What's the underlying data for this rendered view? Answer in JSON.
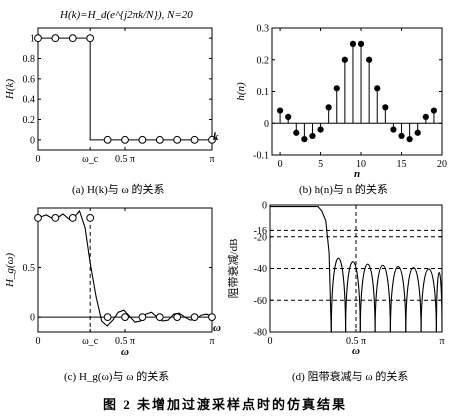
{
  "figure_caption": "图 2 未增加过渡采样点时的仿真结果",
  "chart_data": [
    {
      "id": "a",
      "type": "scatter",
      "title": "H(k)=H_d(e^{j2πk/N}), N=20",
      "caption": "(a) H(k)与 ω 的关系",
      "ylabel": "H(k)",
      "xlabel": "",
      "x_end_label": "k",
      "xlim": [
        0,
        3.1416
      ],
      "ylim": [
        -0.1,
        1.1
      ],
      "xticks": [
        {
          "v": 0,
          "label": "0"
        },
        {
          "v": 0.942,
          "label": "ω_c"
        },
        {
          "v": 1.5708,
          "label": "0.5 π"
        },
        {
          "v": 3.1416,
          "label": "π"
        }
      ],
      "yticks": [
        {
          "v": 0,
          "label": "0"
        },
        {
          "v": 0.2,
          "label": "0.2"
        },
        {
          "v": 0.4,
          "label": "0.4"
        },
        {
          "v": 0.6,
          "label": "0.6"
        },
        {
          "v": 0.8,
          "label": "0.8"
        },
        {
          "v": 1,
          "label": "1"
        }
      ],
      "points": {
        "x": [
          0,
          0.314,
          0.628,
          0.942,
          1.257,
          1.571,
          1.885,
          2.199,
          2.513,
          2.827,
          3.1416
        ],
        "y": [
          1,
          1,
          1,
          1,
          0,
          0,
          0,
          0,
          0,
          0,
          0
        ]
      },
      "ideal": {
        "x": [
          0,
          0.942,
          0.942,
          3.1416
        ],
        "y": [
          1,
          1,
          0,
          0
        ]
      }
    },
    {
      "id": "b",
      "type": "scatter",
      "caption": "(b) h(n)与 n 的关系",
      "ylabel": "h(n)",
      "xlabel": "n",
      "xlim": [
        -1,
        20
      ],
      "ylim": [
        -0.1,
        0.3
      ],
      "xticks": [
        {
          "v": 0,
          "label": "0"
        },
        {
          "v": 5,
          "label": "5"
        },
        {
          "v": 10,
          "label": "10"
        },
        {
          "v": 15,
          "label": "15"
        },
        {
          "v": 20,
          "label": "20"
        }
      ],
      "yticks": [
        {
          "v": -0.1,
          "label": "-0.1"
        },
        {
          "v": 0,
          "label": "0"
        },
        {
          "v": 0.1,
          "label": "0.1"
        },
        {
          "v": 0.2,
          "label": "0.2"
        },
        {
          "v": 0.3,
          "label": "0.3"
        }
      ],
      "stems": {
        "x": [
          0,
          1,
          2,
          3,
          4,
          5,
          6,
          7,
          8,
          9,
          10,
          11,
          12,
          13,
          14,
          15,
          16,
          17,
          18,
          19
        ],
        "y": [
          0.04,
          0.02,
          -0.03,
          -0.05,
          -0.04,
          -0.02,
          0.05,
          0.11,
          0.2,
          0.25,
          0.25,
          0.2,
          0.11,
          0.05,
          -0.02,
          -0.04,
          -0.05,
          -0.03,
          0.02,
          0.04
        ]
      }
    },
    {
      "id": "c",
      "type": "line",
      "caption": "(c) H_g(ω)与 ω 的关系",
      "ylabel": "H_g(ω)",
      "xlabel": "ω",
      "x_end_label": "ω",
      "xlim": [
        0,
        3.1416
      ],
      "ylim": [
        -0.15,
        1.1
      ],
      "xticks": [
        {
          "v": 0,
          "label": "0"
        },
        {
          "v": 0.942,
          "label": "ω_c"
        },
        {
          "v": 1.5708,
          "label": "0.5 π"
        },
        {
          "v": 3.1416,
          "label": "π"
        }
      ],
      "yticks": [
        {
          "v": 0,
          "label": "0"
        },
        {
          "v": 0.5,
          "label": "0.5"
        }
      ],
      "curve": {
        "x": [
          0,
          0.15,
          0.3,
          0.45,
          0.6,
          0.75,
          0.85,
          0.94,
          1.05,
          1.15,
          1.25,
          1.35,
          1.45,
          1.55,
          1.65,
          1.75,
          1.85,
          1.95,
          2.05,
          2.15,
          2.25,
          2.35,
          2.45,
          2.55,
          2.65,
          2.75,
          2.85,
          2.95,
          3.05,
          3.1416
        ],
        "y": [
          1,
          1.03,
          0.98,
          1.04,
          0.97,
          1.07,
          0.9,
          0.55,
          0.2,
          -0.04,
          -0.09,
          -0.03,
          0.05,
          0.07,
          0.01,
          -0.05,
          -0.04,
          0.03,
          0.05,
          0.0,
          -0.04,
          -0.03,
          0.03,
          0.04,
          0.0,
          -0.03,
          -0.02,
          0.02,
          0.03,
          0.0
        ]
      },
      "markers": {
        "x": [
          0,
          0.314,
          0.628,
          0.942,
          1.257,
          1.571,
          1.885,
          2.199,
          2.513,
          2.827,
          3.1416
        ],
        "y": [
          1,
          1,
          1,
          1,
          0,
          0,
          0,
          0,
          0,
          0,
          0
        ]
      },
      "cutoff": 0.942
    },
    {
      "id": "d",
      "type": "line",
      "caption": "(d) 阻带衰减与 ω 的关系",
      "ylabel": "阻带衰减/dB",
      "xlabel": "ω",
      "xlim": [
        0,
        3.1416
      ],
      "ylim": [
        -80,
        0
      ],
      "xticks": [
        {
          "v": 0,
          "label": "0"
        },
        {
          "v": 1.5708,
          "label": "0.5 π"
        },
        {
          "v": 3.1416,
          "label": "π"
        }
      ],
      "yticks": [
        {
          "v": 0,
          "label": "0"
        },
        {
          "v": -16,
          "label": "-16"
        },
        {
          "v": -20,
          "label": "-20"
        },
        {
          "v": -40,
          "label": "-40"
        },
        {
          "v": -60,
          "label": "-60"
        },
        {
          "v": -80,
          "label": "-80"
        }
      ],
      "hlines": [
        -16,
        -20,
        -40,
        -60
      ],
      "vline": 1.5708,
      "passband_end": 0.88,
      "lobes": [
        {
          "start": 1.12,
          "end": 1.38,
          "peak": -18
        },
        {
          "start": 1.38,
          "end": 1.65,
          "peak": -21
        },
        {
          "start": 1.65,
          "end": 1.92,
          "peak": -23
        },
        {
          "start": 1.92,
          "end": 2.2,
          "peak": -24
        },
        {
          "start": 2.2,
          "end": 2.48,
          "peak": -25
        },
        {
          "start": 2.48,
          "end": 2.76,
          "peak": -26
        },
        {
          "start": 2.76,
          "end": 3.04,
          "peak": -27
        },
        {
          "start": 3.04,
          "end": 3.1416,
          "peak": -30
        }
      ]
    }
  ]
}
